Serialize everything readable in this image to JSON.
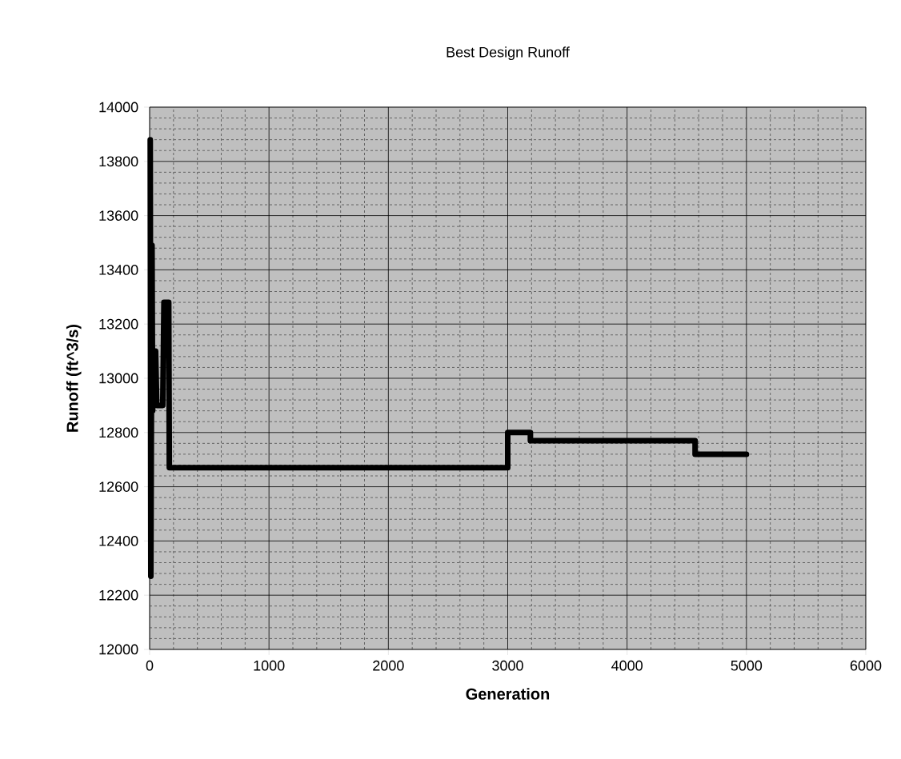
{
  "chart_data": {
    "type": "line",
    "title": "Best Design Runoff",
    "xlabel": "Generation",
    "ylabel": "Runoff (ft^3/s)",
    "x": [
      5,
      10,
      20,
      25,
      50,
      60,
      110,
      120,
      160,
      165,
      3000,
      3000,
      3190,
      3190,
      4570,
      4570,
      5000
    ],
    "series": [
      {
        "color": "#000000",
        "values": [
          13880,
          12270,
          13490,
          12880,
          13100,
          12900,
          12900,
          13280,
          13280,
          12670,
          12670,
          12800,
          12800,
          12770,
          12770,
          12720,
          12720
        ]
      }
    ],
    "xlim": [
      0,
      6000
    ],
    "xticks": [
      0,
      1000,
      2000,
      3000,
      4000,
      5000,
      6000
    ],
    "ylim": [
      12000,
      14000
    ],
    "yticks": [
      12000,
      12200,
      12400,
      12600,
      12800,
      13000,
      13200,
      13400,
      13600,
      13800,
      14000
    ],
    "grid": true,
    "marker": "none",
    "line_style": "solid"
  }
}
